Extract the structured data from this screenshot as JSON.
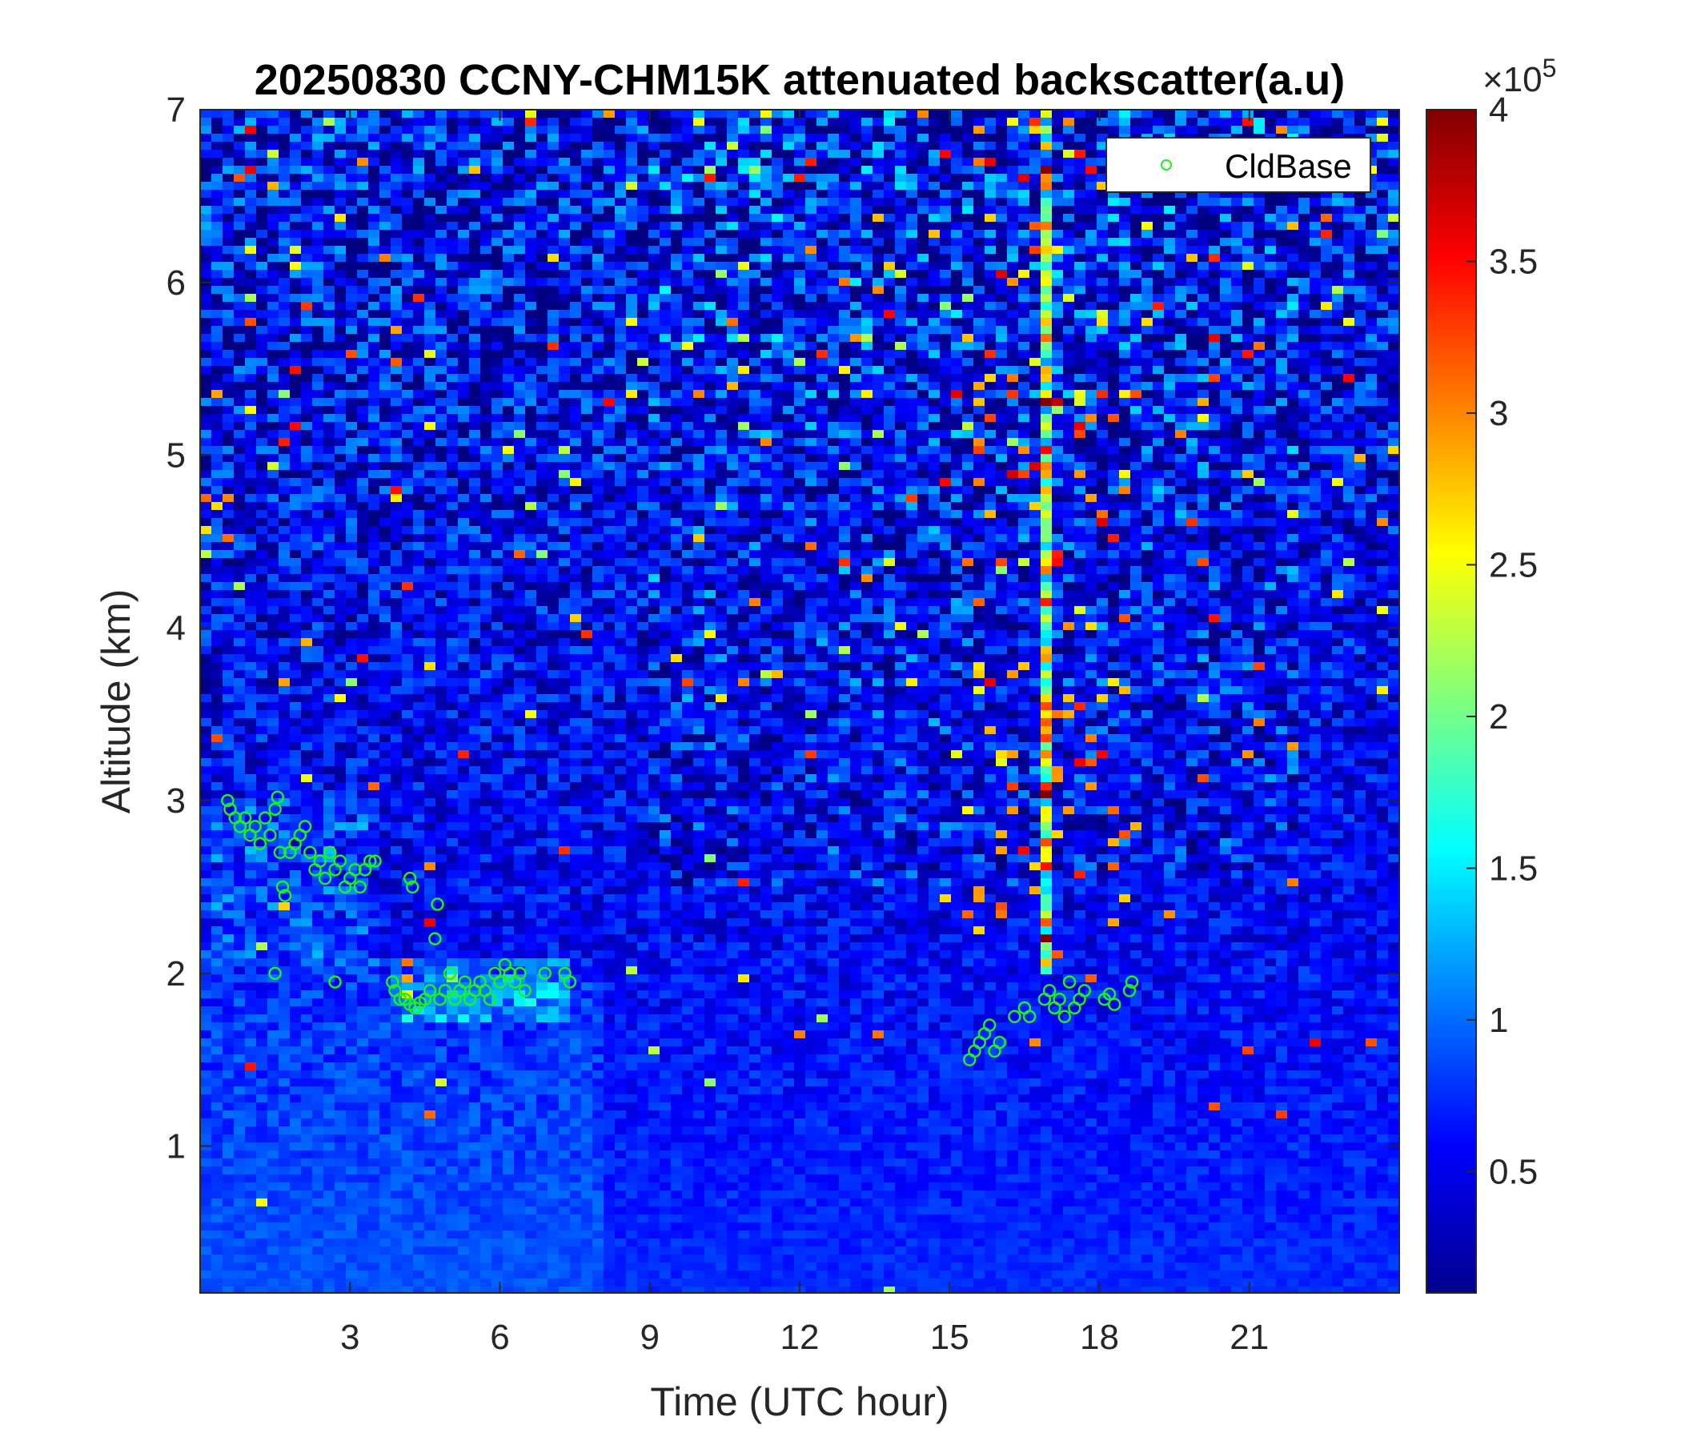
{
  "chart_data": {
    "type": "heatmap",
    "title": "20250830 CCNY-CHM15K attenuated backscatter(a.u)",
    "xlabel": "Time (UTC hour)",
    "ylabel": "Altitude (km)",
    "xlim": [
      0,
      24
    ],
    "ylim": [
      0.15,
      7
    ],
    "x_ticks": [
      3,
      6,
      9,
      12,
      15,
      18,
      21
    ],
    "x_tick_labels": [
      "3",
      "6",
      "9",
      "12",
      "15",
      "18",
      "21"
    ],
    "y_ticks": [
      1,
      2,
      3,
      4,
      5,
      6,
      7
    ],
    "y_tick_labels": [
      "1",
      "2",
      "3",
      "4",
      "5",
      "6",
      "7"
    ],
    "colormap": "jet",
    "colorbar": {
      "range": [
        0.1,
        4
      ],
      "ticks": [
        0.5,
        1,
        1.5,
        2,
        2.5,
        3,
        3.5,
        4
      ],
      "tick_labels": [
        "0.5",
        "1",
        "1.5",
        "2",
        "2.5",
        "3",
        "3.5",
        "4"
      ],
      "multiplier_base": "×10",
      "multiplier_exponent": "5"
    },
    "legend": {
      "placement": "top-right",
      "entries": [
        "CldBase"
      ]
    },
    "series": [
      {
        "name": "CldBase",
        "marker": "circle",
        "color": "#22ee22",
        "points": [
          [
            0.55,
            3.0
          ],
          [
            0.6,
            2.95
          ],
          [
            0.7,
            2.9
          ],
          [
            0.8,
            2.85
          ],
          [
            0.9,
            2.9
          ],
          [
            1.0,
            2.8
          ],
          [
            1.1,
            2.85
          ],
          [
            1.2,
            2.75
          ],
          [
            1.3,
            2.9
          ],
          [
            1.4,
            2.8
          ],
          [
            1.5,
            2.95
          ],
          [
            1.55,
            3.02
          ],
          [
            1.6,
            2.7
          ],
          [
            1.65,
            2.5
          ],
          [
            1.7,
            2.45
          ],
          [
            1.8,
            2.7
          ],
          [
            1.9,
            2.75
          ],
          [
            2.0,
            2.8
          ],
          [
            2.1,
            2.85
          ],
          [
            2.2,
            2.7
          ],
          [
            2.3,
            2.6
          ],
          [
            2.4,
            2.65
          ],
          [
            2.5,
            2.55
          ],
          [
            2.6,
            2.7
          ],
          [
            2.7,
            2.6
          ],
          [
            2.8,
            2.65
          ],
          [
            2.9,
            2.5
          ],
          [
            3.0,
            2.55
          ],
          [
            3.1,
            2.6
          ],
          [
            3.2,
            2.5
          ],
          [
            3.3,
            2.6
          ],
          [
            3.4,
            2.65
          ],
          [
            3.5,
            2.65
          ],
          [
            4.2,
            2.55
          ],
          [
            4.25,
            2.5
          ],
          [
            3.85,
            1.95
          ],
          [
            3.9,
            1.9
          ],
          [
            4.0,
            1.85
          ],
          [
            4.1,
            1.85
          ],
          [
            4.2,
            1.82
          ],
          [
            4.3,
            1.8
          ],
          [
            4.4,
            1.83
          ],
          [
            4.5,
            1.85
          ],
          [
            4.6,
            1.9
          ],
          [
            4.7,
            2.2
          ],
          [
            4.75,
            2.4
          ],
          [
            4.8,
            1.85
          ],
          [
            4.9,
            1.9
          ],
          [
            5.0,
            2.0
          ],
          [
            5.1,
            1.85
          ],
          [
            5.2,
            1.9
          ],
          [
            5.3,
            1.95
          ],
          [
            5.4,
            1.85
          ],
          [
            5.5,
            1.9
          ],
          [
            5.6,
            1.95
          ],
          [
            5.7,
            1.9
          ],
          [
            5.8,
            1.85
          ],
          [
            5.9,
            2.0
          ],
          [
            6.0,
            1.95
          ],
          [
            6.1,
            2.05
          ],
          [
            6.2,
            2.0
          ],
          [
            6.3,
            1.95
          ],
          [
            6.4,
            2.0
          ],
          [
            6.5,
            1.9
          ],
          [
            6.9,
            2.0
          ],
          [
            7.3,
            2.0
          ],
          [
            7.4,
            1.95
          ],
          [
            2.7,
            1.95
          ],
          [
            1.5,
            2.0
          ],
          [
            15.4,
            1.5
          ],
          [
            15.5,
            1.55
          ],
          [
            15.6,
            1.6
          ],
          [
            15.7,
            1.65
          ],
          [
            15.8,
            1.7
          ],
          [
            15.9,
            1.55
          ],
          [
            16.0,
            1.6
          ],
          [
            16.3,
            1.75
          ],
          [
            16.5,
            1.8
          ],
          [
            16.6,
            1.75
          ],
          [
            16.9,
            1.85
          ],
          [
            17.0,
            1.9
          ],
          [
            17.1,
            1.8
          ],
          [
            17.2,
            1.85
          ],
          [
            17.3,
            1.75
          ],
          [
            17.4,
            1.95
          ],
          [
            17.5,
            1.8
          ],
          [
            17.6,
            1.85
          ],
          [
            17.7,
            1.9
          ],
          [
            18.1,
            1.85
          ],
          [
            18.2,
            1.88
          ],
          [
            18.3,
            1.82
          ],
          [
            18.6,
            1.9
          ],
          [
            18.65,
            1.95
          ]
        ]
      }
    ]
  }
}
